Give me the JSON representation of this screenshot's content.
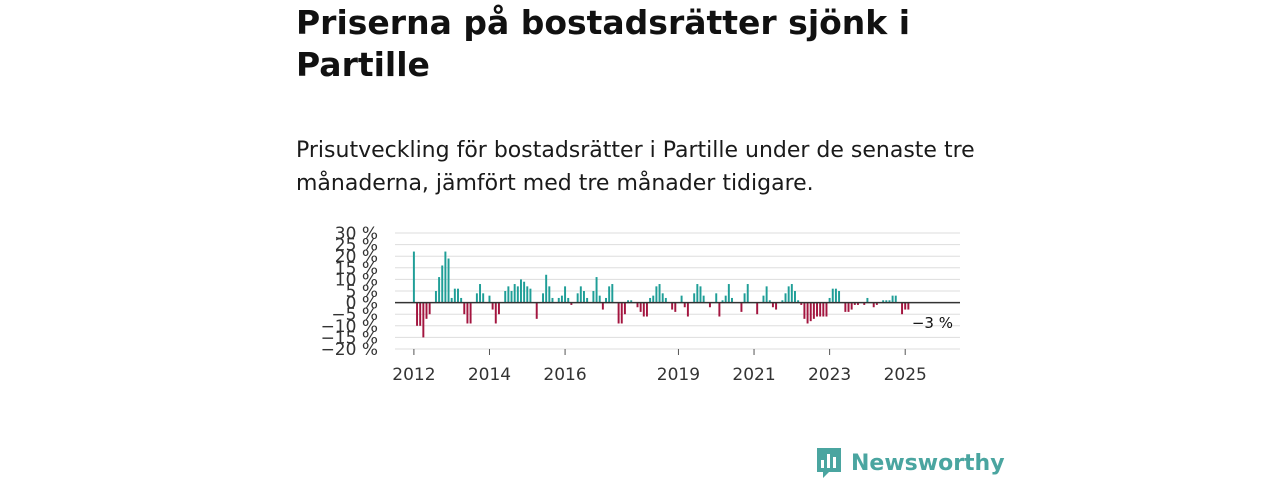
{
  "title": "Priserna på bostadsrätter sjönk i Partille",
  "subtitle": "Prisutveckling för bostadsrätter i Partille under de senaste tre månaderna, jämfört med tre månader tidigare.",
  "brand": {
    "name": "Newsworthy",
    "icon": "newsworthy-logo-icon",
    "color": "#4aa5a0"
  },
  "colors": {
    "positive": "#1f9e97",
    "negative": "#a3153f",
    "zero_line": "#333333",
    "grid": "#dddddd"
  },
  "chart_data": {
    "type": "bar",
    "title": "",
    "xlabel": "",
    "ylabel": "",
    "ylim": [
      -20,
      30
    ],
    "y_ticks": [
      30,
      25,
      20,
      15,
      10,
      5,
      0,
      -5,
      -10,
      -15,
      -20
    ],
    "y_tick_labels": [
      "30 %",
      "25 %",
      "20 %",
      "15 %",
      "10 %",
      "5 %",
      "0 %",
      "−5 %",
      "−10 %",
      "−15 %",
      "−20 %"
    ],
    "x_range": [
      2011.5,
      2026.45
    ],
    "x_ticks": [
      2012,
      2014,
      2016,
      2019,
      2021,
      2023,
      2025
    ],
    "x_tick_labels": [
      "2012",
      "2014",
      "2016",
      "2019",
      "2021",
      "2023",
      "2025"
    ],
    "start": [
      2012,
      1
    ],
    "values": [
      22,
      -10,
      -10,
      -15,
      -7,
      -5,
      0,
      5,
      11,
      16,
      22,
      19,
      2,
      6,
      6,
      2,
      -5,
      -9,
      -9,
      0,
      4,
      8,
      4,
      0,
      3,
      -3,
      -9,
      -5,
      0,
      5,
      7,
      5,
      8,
      7,
      10,
      9,
      7,
      6,
      0,
      -7,
      0,
      4,
      12,
      7,
      2,
      0,
      2,
      3,
      7,
      2,
      -1,
      0,
      4,
      7,
      5,
      2,
      0,
      5,
      11,
      3,
      -3,
      2,
      7,
      8,
      0,
      -9,
      -9,
      -5,
      1,
      1,
      0,
      -2,
      -4,
      -6,
      -6,
      2,
      3,
      7,
      8,
      4,
      2,
      0,
      -3,
      -4,
      0,
      3,
      -2,
      -6,
      0,
      4,
      8,
      7,
      3,
      0,
      -2,
      0,
      4,
      -6,
      1,
      3,
      8,
      2,
      0,
      0,
      -4,
      4,
      8,
      0,
      0,
      -5,
      0,
      3,
      7,
      1,
      -2,
      -3,
      0,
      1,
      4,
      7,
      8,
      5,
      1,
      -1,
      -7,
      -9,
      -8,
      -7,
      -6,
      -6,
      -6,
      -6,
      2,
      6,
      6,
      5,
      0,
      -4,
      -4,
      -3,
      -1,
      -1,
      0,
      -1,
      2,
      0,
      -2,
      -1,
      0,
      1,
      1,
      1,
      3,
      3,
      0,
      -5,
      -3,
      -3
    ],
    "annotation": "−3 %"
  }
}
